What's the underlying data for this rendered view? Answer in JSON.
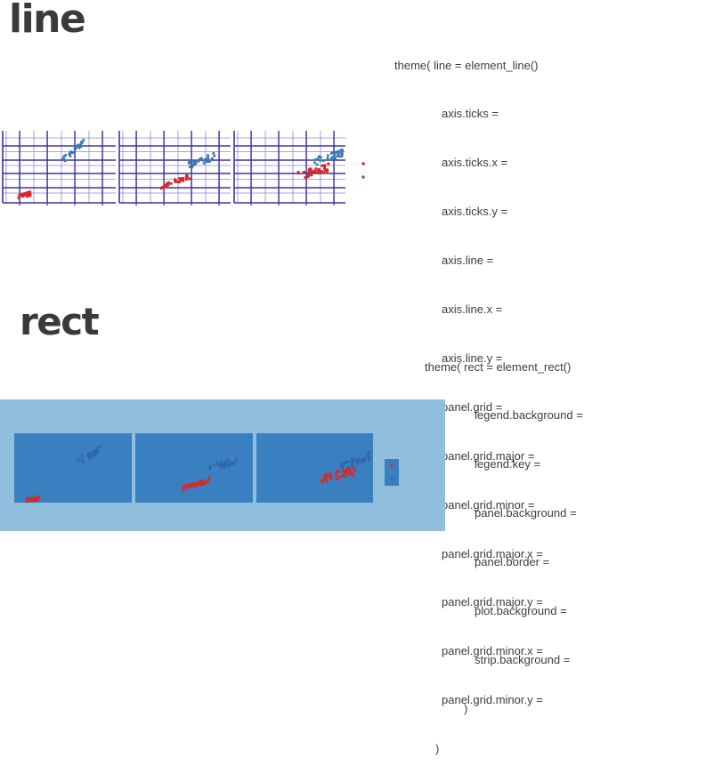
{
  "sections": {
    "line": {
      "title": "line",
      "code_open": "theme( line = element_line()",
      "code_lines": [
        "axis.ticks =",
        "axis.ticks.x =",
        "axis.ticks.y =",
        "axis.line =",
        "axis.line.x =",
        "axis.line.y =",
        "panel.grid =",
        "panel.grid.major =",
        "panel.grid.minor =",
        "panel.grid.major.x =",
        "panel.grid.major.y =",
        "panel.grid.minor.x =",
        "panel.grid.minor.y ="
      ],
      "code_close": ")"
    },
    "rect": {
      "title": "rect",
      "code_open": "theme( rect = element_rect()",
      "code_lines": [
        "legend.background =",
        "legend.key =",
        "panel.background =",
        "panel.border =",
        "plot.background =",
        "strip.background ="
      ],
      "code_close": ")"
    }
  },
  "colors": {
    "grid_line": "#3b33a6",
    "grid_minor": "#8d88d2",
    "plot_background": "#8fbfdc",
    "panel_background": "#3a7fbf",
    "series_red": "#d42a2a",
    "series_blue": "#3a78b5",
    "blue_on_blue": "#2f66a8"
  }
}
